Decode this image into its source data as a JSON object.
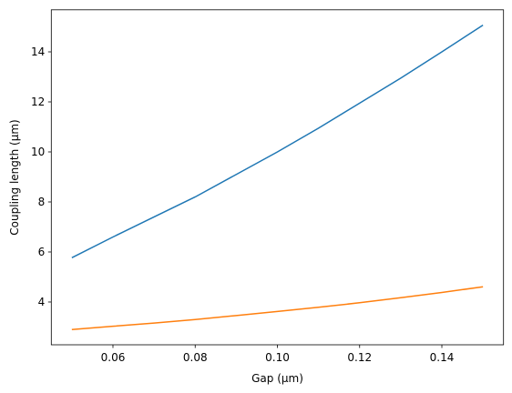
{
  "chart_data": {
    "type": "line",
    "xlabel": "Gap (µm)",
    "ylabel": "Coupling length (µm)",
    "x": [
      0.05,
      0.06,
      0.07,
      0.08,
      0.09,
      0.1,
      0.11,
      0.12,
      0.13,
      0.14,
      0.15
    ],
    "series": [
      {
        "color": "#1f77b4",
        "values": [
          5.77,
          6.6,
          7.4,
          8.2,
          9.1,
          10.0,
          10.95,
          11.95,
          12.95,
          14.0,
          15.07
        ]
      },
      {
        "color": "#ff7f0e",
        "values": [
          2.9,
          3.03,
          3.16,
          3.3,
          3.46,
          3.62,
          3.79,
          3.97,
          4.17,
          4.38,
          4.61
        ]
      }
    ],
    "xlim": [
      0.045,
      0.155
    ],
    "xticks": [
      0.06,
      0.08,
      {
        "value": 0.1,
        "label": "0.10"
      },
      0.12,
      0.14
    ],
    "ylim": [
      2.29,
      15.68
    ],
    "yticks": [
      4,
      6,
      8,
      10,
      12,
      14
    ],
    "grid": false
  }
}
